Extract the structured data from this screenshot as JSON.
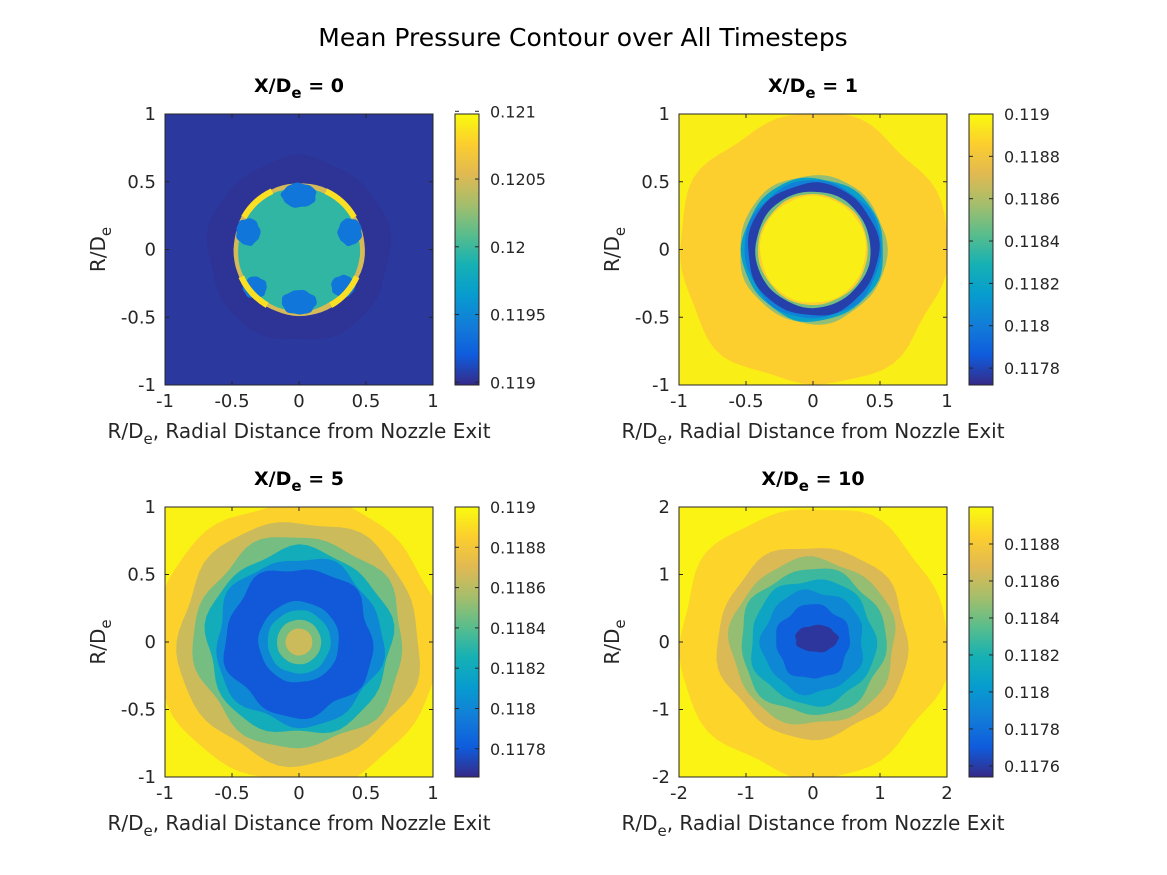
{
  "figure": {
    "title": "Mean Pressure Contour over All Timesteps"
  },
  "chart_data": [
    {
      "type": "heatmap",
      "title": "X/De = 0",
      "title_main": "X/D",
      "title_sub": "e",
      "title_tail": " = 0",
      "xlabel_main": "R/D",
      "xlabel_sub": "e",
      "xlabel_tail": ", Radial Distance from Nozzle Exit",
      "ylabel_main": "R/D",
      "ylabel_sub": "e",
      "xlim": [
        -1,
        1
      ],
      "ylim": [
        -1,
        1
      ],
      "xticks": [
        -1,
        -0.5,
        0,
        0.5,
        1
      ],
      "yticks": [
        -1,
        -0.5,
        0,
        0.5,
        1
      ],
      "clim": [
        0.11898,
        0.12098
      ],
      "cticks": [
        0.119,
        0.1195,
        0.12,
        0.1205,
        0.121
      ],
      "background": 0.11904,
      "regions": [
        {
          "shape": "ring",
          "r": 0.68,
          "value": 0.11902,
          "wobble": 0.03
        },
        {
          "shape": "disk",
          "r": 0.49,
          "value": 0.12049,
          "wobble": 0.01
        },
        {
          "shape": "disk",
          "r": 0.455,
          "value": 0.11996,
          "wobble": 0.01
        },
        {
          "shape": "blob",
          "cx": 0.0,
          "cy": 0.4,
          "rx": 0.13,
          "ry": 0.09,
          "value": 0.11938
        },
        {
          "shape": "blob",
          "cx": 0.0,
          "cy": -0.39,
          "rx": 0.13,
          "ry": 0.09,
          "value": 0.11938
        },
        {
          "shape": "blob",
          "cx": -0.38,
          "cy": 0.13,
          "rx": 0.09,
          "ry": 0.1,
          "value": 0.11938
        },
        {
          "shape": "blob",
          "cx": 0.38,
          "cy": 0.13,
          "rx": 0.09,
          "ry": 0.1,
          "value": 0.11938
        },
        {
          "shape": "blob",
          "cx": -0.33,
          "cy": -0.28,
          "rx": 0.09,
          "ry": 0.08,
          "value": 0.11938
        },
        {
          "shape": "blob",
          "cx": 0.33,
          "cy": -0.27,
          "rx": 0.09,
          "ry": 0.08,
          "value": 0.11938
        }
      ]
    },
    {
      "type": "heatmap",
      "title": "X/De = 1",
      "title_main": "X/D",
      "title_sub": "e",
      "title_tail": " = 1",
      "xlabel_main": "R/D",
      "xlabel_sub": "e",
      "xlabel_tail": ", Radial Distance from Nozzle Exit",
      "ylabel_main": "R/D",
      "ylabel_sub": "e",
      "xlim": [
        -1,
        1
      ],
      "ylim": [
        -1,
        1
      ],
      "xticks": [
        -1,
        -0.5,
        0,
        0.5,
        1
      ],
      "yticks": [
        -1,
        -0.5,
        0,
        0.5,
        1
      ],
      "clim": [
        0.11772,
        0.119
      ],
      "cticks": [
        0.1178,
        0.118,
        0.1182,
        0.1184,
        0.1186,
        0.1188,
        0.119
      ],
      "background": 0.11896,
      "regions": [
        {
          "shape": "disk",
          "r": 1.0,
          "value": 0.11886,
          "wobble": 0.04
        },
        {
          "shape": "disk",
          "r": 0.55,
          "value": 0.11854,
          "wobble": 0.02
        },
        {
          "shape": "disk",
          "r": 0.53,
          "value": 0.11818,
          "wobble": 0.02
        },
        {
          "shape": "disk",
          "r": 0.51,
          "value": 0.11802,
          "wobble": 0.02
        },
        {
          "shape": "disk",
          "r": 0.49,
          "value": 0.11778,
          "wobble": 0.02
        },
        {
          "shape": "disk",
          "r": 0.43,
          "value": 0.11848,
          "wobble": 0.01
        },
        {
          "shape": "disk",
          "r": 0.41,
          "value": 0.11886,
          "wobble": 0.01
        },
        {
          "shape": "disk",
          "r": 0.395,
          "value": 0.11896,
          "wobble": 0.01
        }
      ]
    },
    {
      "type": "heatmap",
      "title": "X/De = 5",
      "title_main": "X/D",
      "title_sub": "e",
      "title_tail": " = 5",
      "xlabel_main": "R/D",
      "xlabel_sub": "e",
      "xlabel_tail": ", Radial Distance from Nozzle Exit",
      "ylabel_main": "R/D",
      "ylabel_sub": "e",
      "xlim": [
        -1,
        1
      ],
      "ylim": [
        -1,
        1
      ],
      "xticks": [
        -1,
        -0.5,
        0,
        0.5,
        1
      ],
      "yticks": [
        -1,
        -0.5,
        0,
        0.5,
        1
      ],
      "clim": [
        0.11766,
        0.119
      ],
      "cticks": [
        0.1178,
        0.118,
        0.1182,
        0.1184,
        0.1186,
        0.1188,
        0.119
      ],
      "background": 0.11897,
      "regions": [
        {
          "shape": "disk",
          "r": 1.06,
          "value": 0.11886,
          "wobble": 0.04
        },
        {
          "shape": "disk",
          "r": 0.9,
          "value": 0.11865,
          "wobble": 0.04
        },
        {
          "shape": "disk",
          "r": 0.78,
          "value": 0.11846,
          "wobble": 0.05
        },
        {
          "shape": "disk",
          "r": 0.69,
          "value": 0.11822,
          "wobble": 0.05
        },
        {
          "shape": "disk",
          "r": 0.62,
          "value": 0.11801,
          "wobble": 0.06
        },
        {
          "shape": "disk",
          "r": 0.55,
          "value": 0.1178,
          "wobble": 0.07
        },
        {
          "shape": "disk",
          "r": 0.3,
          "value": 0.11801,
          "wobble": 0.02
        },
        {
          "shape": "disk",
          "r": 0.235,
          "value": 0.11822,
          "wobble": 0.02
        },
        {
          "shape": "disk",
          "r": 0.165,
          "value": 0.11846,
          "wobble": 0.01
        },
        {
          "shape": "disk",
          "r": 0.1,
          "value": 0.11865,
          "wobble": 0.01
        }
      ]
    },
    {
      "type": "heatmap",
      "title": "X/De = 10",
      "title_main": "X/D",
      "title_sub": "e",
      "title_tail": " = 10",
      "xlabel_main": "R/D",
      "xlabel_sub": "e",
      "xlabel_tail": ", Radial Distance from Nozzle Exit",
      "ylabel_main": "R/D",
      "ylabel_sub": "e",
      "xlim": [
        -2,
        2
      ],
      "ylim": [
        -2,
        2
      ],
      "xticks": [
        -2,
        -1,
        0,
        1,
        2
      ],
      "yticks": [
        -2,
        -1,
        0,
        1,
        2
      ],
      "clim": [
        0.11754,
        0.119
      ],
      "cticks": [
        0.1176,
        0.1178,
        0.118,
        0.1182,
        0.1184,
        0.1186,
        0.1188
      ],
      "background": 0.11897,
      "regions": [
        {
          "shape": "disk",
          "r": 2.0,
          "value": 0.11886,
          "wobble": 0.04
        },
        {
          "shape": "disk",
          "r": 1.42,
          "value": 0.11866,
          "wobble": 0.04
        },
        {
          "shape": "disk",
          "r": 1.23,
          "value": 0.11848,
          "wobble": 0.04
        },
        {
          "shape": "disk",
          "r": 1.08,
          "value": 0.11828,
          "wobble": 0.05
        },
        {
          "shape": "disk",
          "r": 0.93,
          "value": 0.1181,
          "wobble": 0.05
        },
        {
          "shape": "disk",
          "r": 0.76,
          "value": 0.11792,
          "wobble": 0.06
        },
        {
          "shape": "disk",
          "r": 0.55,
          "value": 0.11772,
          "wobble": 0.07
        },
        {
          "shape": "blob",
          "cx": 0.05,
          "cy": 0.05,
          "rx": 0.32,
          "ry": 0.2,
          "value": 0.11758
        }
      ]
    }
  ]
}
